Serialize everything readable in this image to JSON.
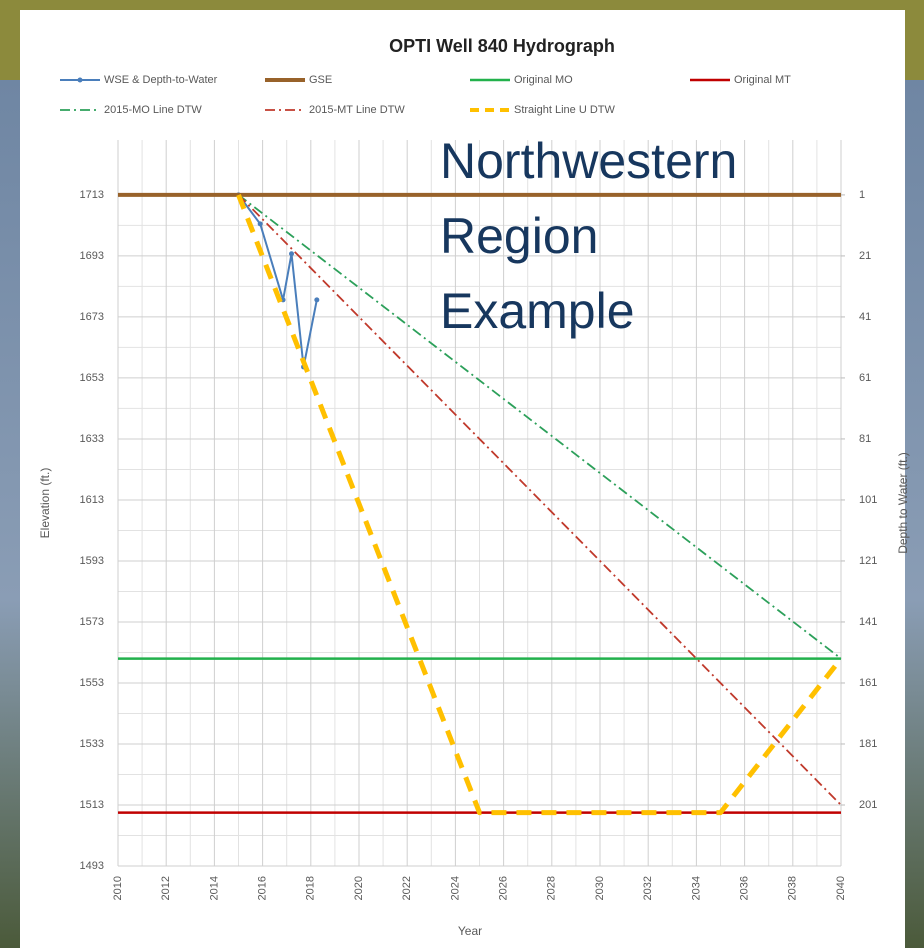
{
  "chart_data": {
    "type": "line",
    "title": "OPTI Well 840 Hydrograph",
    "annotation": [
      "Northwestern",
      "Region",
      "Example"
    ],
    "x_label": "Year",
    "y_label": "Elevation (ft.)",
    "y2_label": "Depth to Water (ft.)",
    "xlim": [
      2010,
      2040
    ],
    "xticks": [
      2010,
      2012,
      2014,
      2016,
      2018,
      2020,
      2022,
      2024,
      2026,
      2028,
      2030,
      2032,
      2034,
      2036,
      2038,
      2040
    ],
    "ylim": [
      1493,
      1731
    ],
    "yticks": [
      1493,
      1513,
      1533,
      1553,
      1573,
      1593,
      1613,
      1633,
      1653,
      1673,
      1693,
      1713
    ],
    "y2lim": [
      221,
      -17
    ],
    "y2ticks": [
      1,
      21,
      41,
      61,
      81,
      101,
      121,
      141,
      161,
      181,
      201
    ],
    "grid": true,
    "minor_grid": true,
    "legend": "top",
    "series": [
      {
        "name": "WSE & Depth-to-Water",
        "color": "#4a7ebb",
        "dash": "solid",
        "width": 2,
        "marker": true,
        "x": [
          2015,
          2015.9,
          2016.85,
          2017.2,
          2017.7,
          2018.25
        ],
        "values": [
          1713,
          1703.5,
          1678.6,
          1693.7,
          1656.6,
          1678.6
        ]
      },
      {
        "name": "GSE",
        "color": "#98622a",
        "dash": "solid",
        "width": 4,
        "marker": false,
        "x": [
          2010,
          2040
        ],
        "values": [
          1713,
          1713
        ]
      },
      {
        "name": "Original MO",
        "color": "#22b14c",
        "dash": "solid",
        "width": 2.5,
        "marker": false,
        "x": [
          2010,
          2040
        ],
        "values": [
          1561,
          1561
        ]
      },
      {
        "name": "Original MT",
        "color": "#c00000",
        "dash": "solid",
        "width": 2.5,
        "marker": false,
        "x": [
          2010,
          2040
        ],
        "values": [
          1510.5,
          1510.5
        ]
      },
      {
        "name": "2015-MO Line DTW",
        "color": "#2ca05a",
        "dash": "dashdot",
        "width": 1.8,
        "marker": false,
        "x": [
          2015,
          2040
        ],
        "values": [
          1713,
          1561
        ]
      },
      {
        "name": "2015-MT Line DTW",
        "color": "#c0392b",
        "dash": "dashdot",
        "width": 1.8,
        "marker": false,
        "x": [
          2015,
          2040
        ],
        "values": [
          1713,
          1513
        ]
      },
      {
        "name": "Straight Line U DTW",
        "color": "#ffc000",
        "dash": "dashed",
        "width": 5,
        "marker": false,
        "x": [
          2015,
          2025,
          2035,
          2040
        ],
        "values": [
          1713,
          1510.5,
          1510.5,
          1561
        ]
      }
    ]
  }
}
